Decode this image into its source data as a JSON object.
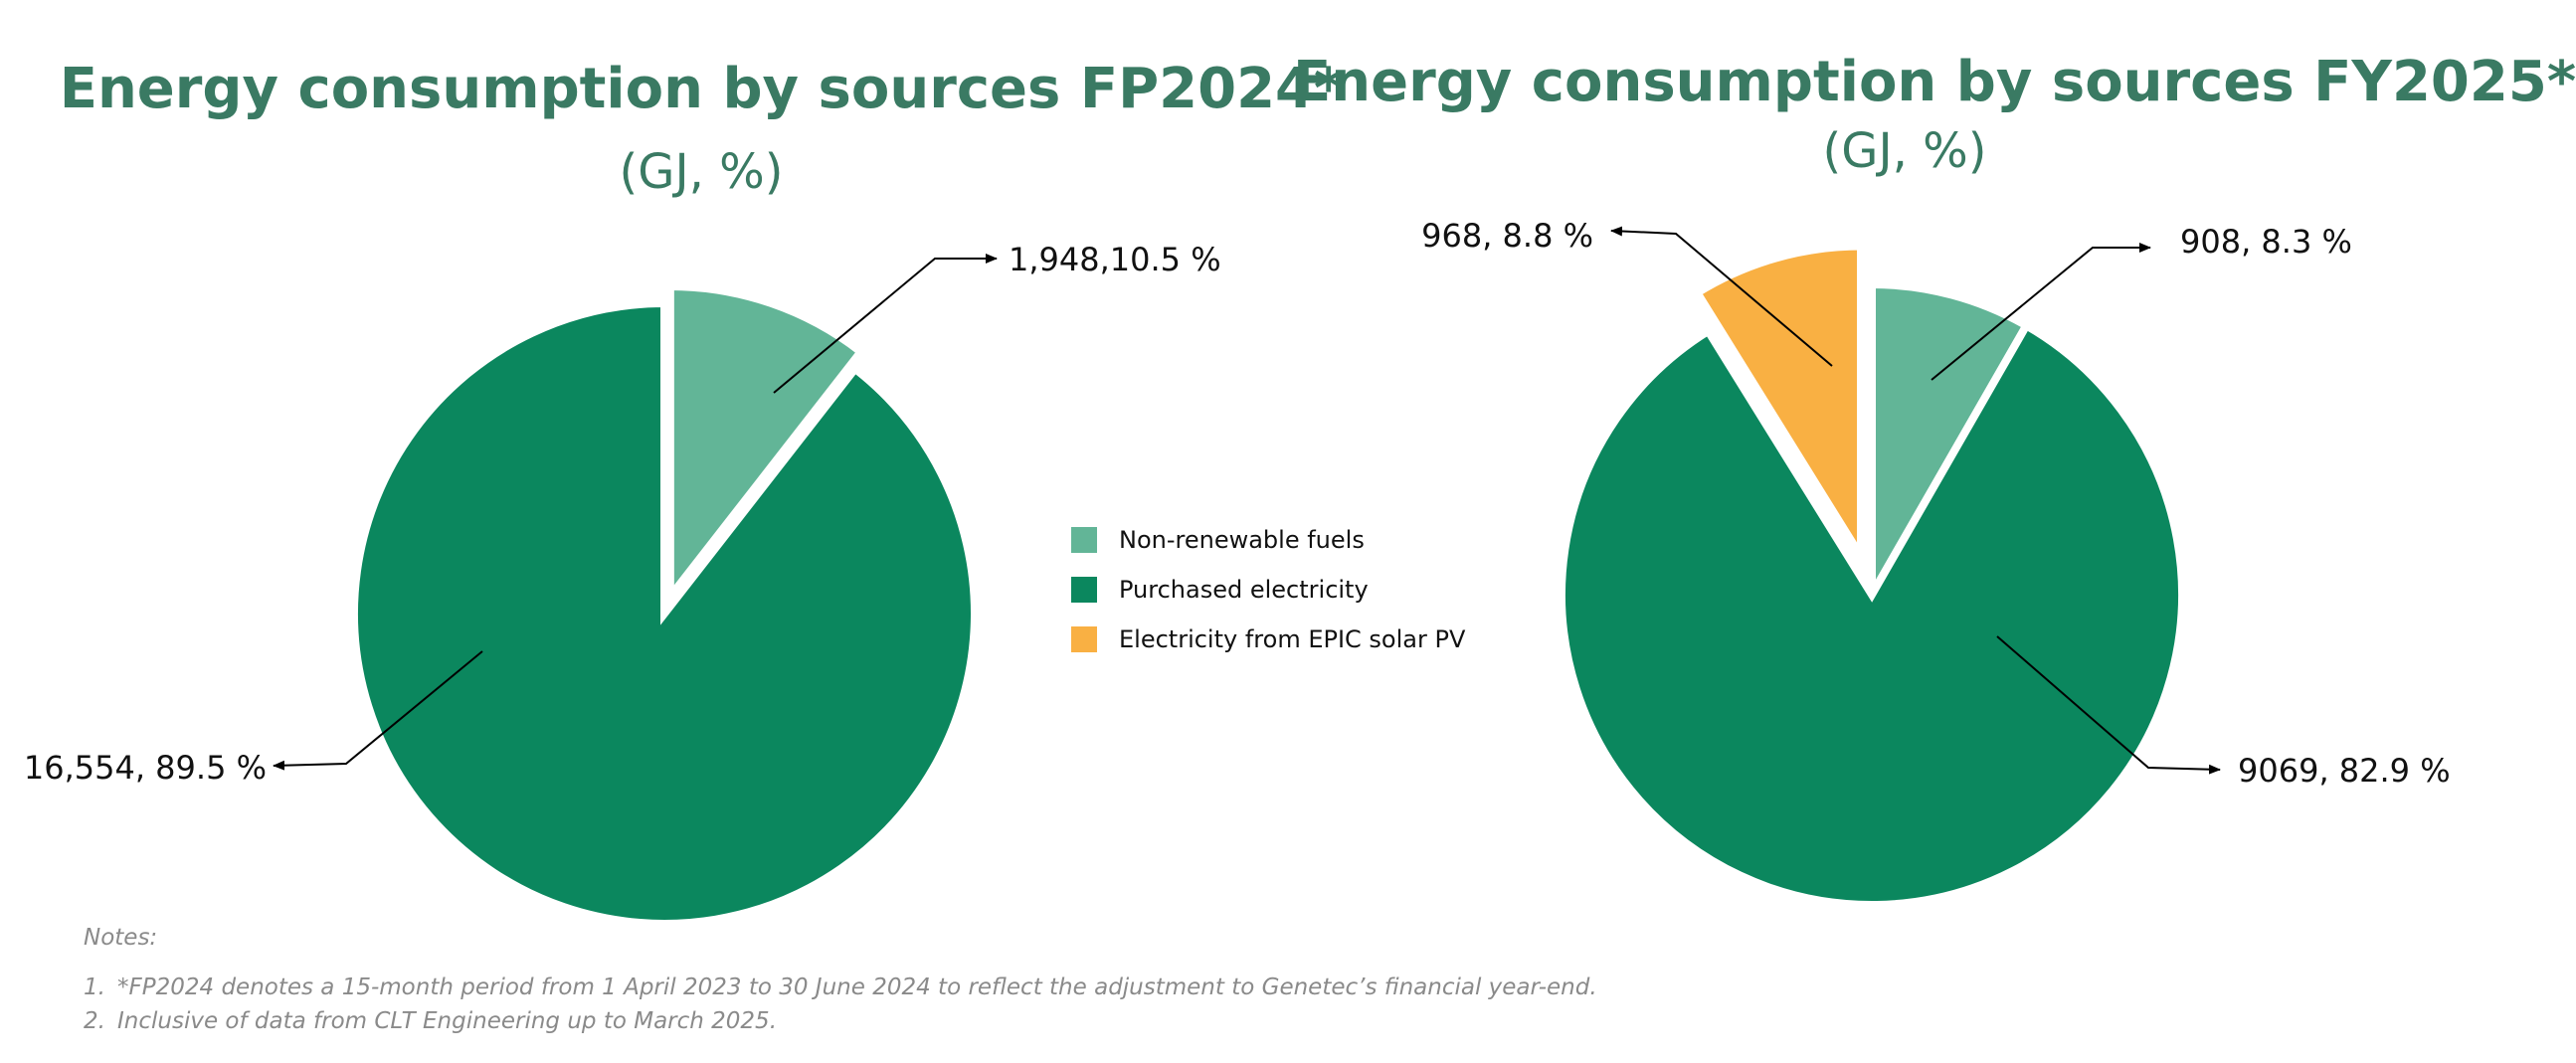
{
  "chart_data": [
    {
      "type": "pie",
      "title": "Energy consumption by sources FP2024*",
      "subtitle": "(GJ, %)",
      "unit": "GJ",
      "slices": [
        {
          "name": "Non-renewable fuels",
          "value": 1948,
          "percent": 10.5,
          "label": "1,948,10.5 %",
          "color": "#62b597",
          "exploded": true
        },
        {
          "name": "Purchased electricity",
          "value": 16554,
          "percent": 89.5,
          "label": "16,554, 89.5 %",
          "color": "#0b875e",
          "exploded": false
        }
      ]
    },
    {
      "type": "pie",
      "title": "Energy consumption by sources FY2025*",
      "subtitle": "(GJ, %)",
      "unit": "GJ",
      "slices": [
        {
          "name": "Non-renewable fuels",
          "value": 908,
          "percent": 8.3,
          "label": "908, 8.3 %",
          "color": "#62b597",
          "exploded": false
        },
        {
          "name": "Purchased electricity",
          "value": 9069,
          "percent": 82.9,
          "label": "9069, 82.9 %",
          "color": "#0b875e",
          "exploded": false
        },
        {
          "name": "Electricity from EPIC solar PV",
          "value": 968,
          "percent": 8.8,
          "label": "968, 8.8 %",
          "color": "#f9b043",
          "exploded": true
        }
      ]
    }
  ],
  "legend": {
    "placement": "center",
    "items": [
      {
        "label": "Non-renewable fuels",
        "color": "#62b597"
      },
      {
        "label": "Purchased electricity",
        "color": "#0b875e"
      },
      {
        "label": "Electricity from EPIC solar PV",
        "color": "#f9b043"
      }
    ]
  },
  "notes": {
    "heading": "Notes:",
    "items": [
      {
        "num": "1.",
        "text": "*FP2024 denotes a 15-month period from 1 April 2023 to 30 June 2024 to reflect the adjustment to Genetec’s financial year-end."
      },
      {
        "num": "2.",
        "text": "Inclusive of data from CLT Engineering up to March 2025."
      }
    ]
  },
  "colors": {
    "title": "#3a7a63",
    "non_renewable": "#62b597",
    "purchased": "#0b875e",
    "solar": "#f9b043"
  }
}
